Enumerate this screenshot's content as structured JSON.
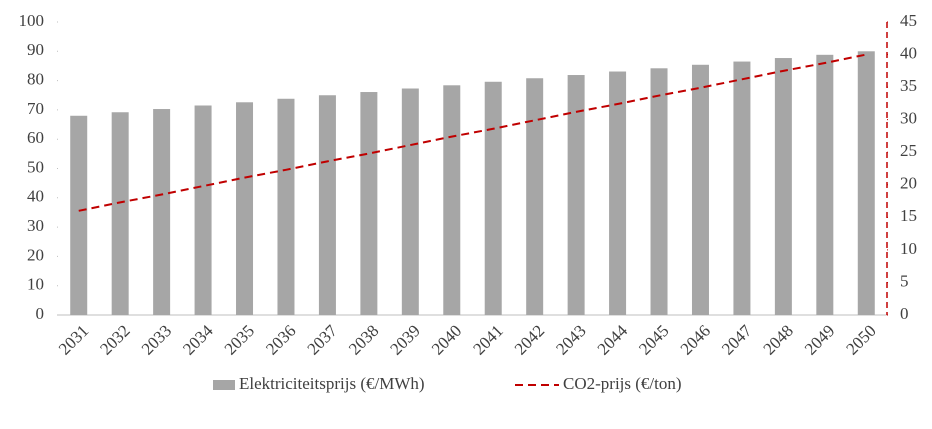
{
  "chart_data": {
    "type": "bar-line",
    "categories": [
      "2031",
      "2032",
      "2033",
      "2034",
      "2035",
      "2036",
      "2037",
      "2038",
      "2039",
      "2040",
      "2041",
      "2042",
      "2043",
      "2044",
      "2045",
      "2046",
      "2047",
      "2048",
      "2049",
      "2050"
    ],
    "series": [
      {
        "name": "Elektriciteitsprijs (€/MWh)",
        "type": "bar",
        "color": "#a6a6a6",
        "values": [
          68,
          69.2,
          70.3,
          71.5,
          72.6,
          73.8,
          75,
          76.1,
          77.3,
          78.4,
          79.6,
          80.8,
          81.9,
          83.1,
          84.2,
          85.4,
          86.5,
          87.7,
          88.8,
          90
        ]
      },
      {
        "name": "CO2-prijs (€/ton)",
        "type": "line",
        "axis": "y2",
        "color": "#c00000",
        "values": [
          16,
          17.3,
          18.5,
          19.8,
          21.1,
          22.3,
          23.6,
          24.8,
          26.1,
          27.4,
          28.6,
          29.9,
          31.2,
          32.4,
          33.7,
          34.9,
          36.2,
          37.5,
          38.7,
          40
        ]
      }
    ],
    "ylim": [
      0,
      100
    ],
    "yticks": [
      0,
      10,
      20,
      30,
      40,
      50,
      60,
      70,
      80,
      90,
      100
    ],
    "y2lim": [
      0,
      45
    ],
    "y2ticks": [
      0,
      5,
      10,
      15,
      20,
      25,
      30,
      35,
      40,
      45
    ],
    "legend": "bottom"
  }
}
